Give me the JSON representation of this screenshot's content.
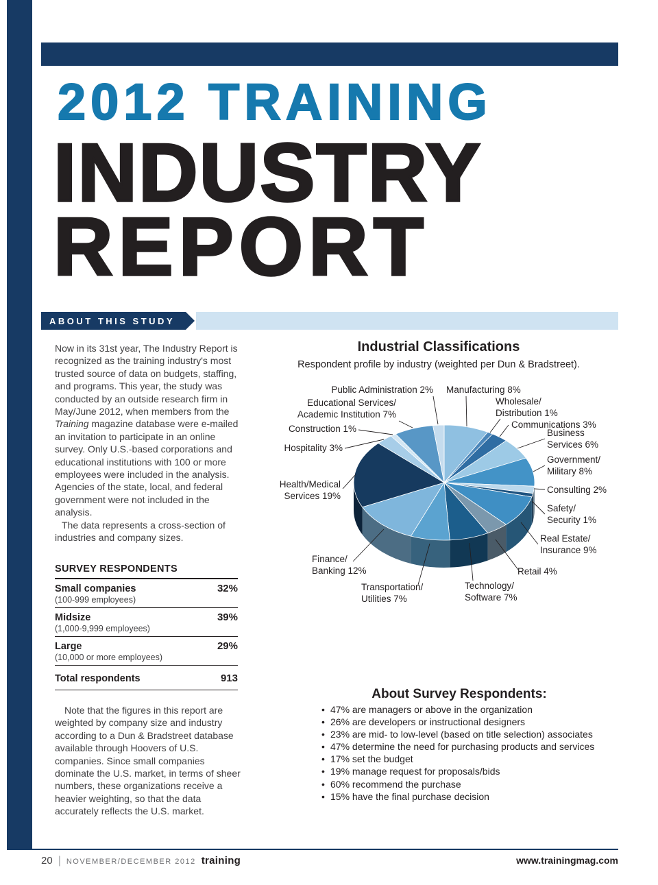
{
  "page": {
    "masthead": {
      "title_line1": "2012 TRAINING",
      "title_line2": "INDUSTRY",
      "title_line3": "REPORT"
    },
    "section_band": {
      "label": "ABOUT THIS STUDY"
    },
    "about_study": {
      "p1_before": "Now in its 31st year, The Industry Report is recognized as the training industry's most trusted source of data on budgets, staffing, and programs. This year, the study was conducted by an outside research firm in May/June 2012, when members from the ",
      "p1_italic": "Training",
      "p1_after": " magazine database were e-mailed an invitation to participate in an online survey. Only U.S.-based corporations and educational institutions with 100 or more employees were included in the analysis. Agencies of the state, local, and federal government were not included in the analysis.",
      "p2": "The data represents a cross-section of industries and company sizes."
    },
    "survey_respondents": {
      "heading": "SURVEY RESPONDENTS",
      "rows": [
        {
          "label": "Small companies",
          "sublabel": "(100-999 employees)",
          "value": "32%"
        },
        {
          "label": "Midsize",
          "sublabel": "(1,000-9,999 employees)",
          "value": "39%"
        },
        {
          "label": "Large",
          "sublabel": "(10,000 or more employees)",
          "value": "29%"
        },
        {
          "label": "Total respondents",
          "sublabel": "",
          "value": "913"
        }
      ]
    },
    "note": "Note that the figures in this report are weighted by company size and industry according to a Dun & Bradstreet database available through Hoovers of U.S. companies. Since small companies dominate the U.S. market, in terms of sheer numbers, these organizations receive a heavier weighting, so that the data accurately reflects the U.S. market.",
    "about_respondents": {
      "heading": "About Survey Respondents:",
      "items": [
        "47% are managers or above in the organization",
        "26% are developers or instructional designers",
        "23% are mid- to low-level (based on title selection) associates",
        "47% determine the need for purchasing products and services",
        "17% set the budget",
        "19% manage request for proposals/bids",
        "60% recommend the purchase",
        "15% have the final purchase decision"
      ]
    },
    "footer": {
      "page_number": "20",
      "issue": "NOVEMBER/DECEMBER 2012",
      "brand": "training",
      "url": "www.trainingmag.com"
    }
  },
  "chart_data": {
    "type": "pie",
    "title": "Industrial Classifications",
    "subtitle": "Respondent profile by industry (weighted per Dun & Bradstreet).",
    "unit": "percent",
    "start_angle_deg": -90,
    "direction": "clockwise",
    "slices": [
      {
        "label": "Manufacturing",
        "value": 8,
        "color": "#8fc0e1",
        "label_lines": [
          "Manufacturing 8%"
        ]
      },
      {
        "label": "Wholesale/Distribution",
        "value": 1,
        "color": "#4a86ba",
        "label_lines": [
          "Wholesale/",
          "Distribution 1%"
        ]
      },
      {
        "label": "Communications",
        "value": 3,
        "color": "#2f6da3",
        "label_lines": [
          "Communications 3%"
        ]
      },
      {
        "label": "Business Services",
        "value": 6,
        "color": "#9dcae6",
        "label_lines": [
          "Business",
          "Services 6%"
        ]
      },
      {
        "label": "Government/Military",
        "value": 8,
        "color": "#4393c7",
        "label_lines": [
          "Government/",
          "Military 8%"
        ]
      },
      {
        "label": "Consulting",
        "value": 2,
        "color": "#bcd9ec",
        "label_lines": [
          "Consulting 2%"
        ]
      },
      {
        "label": "Safety/Security",
        "value": 1,
        "color": "#1d5380",
        "label_lines": [
          "Safety/",
          "Security 1%"
        ]
      },
      {
        "label": "Real Estate/Insurance",
        "value": 9,
        "color": "#3f8fc4",
        "label_lines": [
          "Real Estate/",
          "Insurance 9%"
        ]
      },
      {
        "label": "Retail",
        "value": 4,
        "color": "#7b98ad",
        "label_lines": [
          "Retail 4%"
        ]
      },
      {
        "label": "Technology/Software",
        "value": 7,
        "color": "#1c5e8c",
        "label_lines": [
          "Technology/",
          "Software 7%"
        ]
      },
      {
        "label": "Transportation/Utilities",
        "value": 7,
        "color": "#5ba3d0",
        "label_lines": [
          "Transportation/",
          "Utilities 7%"
        ]
      },
      {
        "label": "Finance/Banking",
        "value": 12,
        "color": "#7fb6dc",
        "label_lines": [
          "Finance/",
          "Banking 12%"
        ]
      },
      {
        "label": "Health/Medical Services",
        "value": 19,
        "color": "#163a5f",
        "label_lines": [
          "Health/Medical",
          "Services 19%"
        ]
      },
      {
        "label": "Hospitality",
        "value": 3,
        "color": "#a7cde8",
        "label_lines": [
          "Hospitality 3%"
        ]
      },
      {
        "label": "Construction",
        "value": 1,
        "color": "#d3e6f3",
        "label_lines": [
          "Construction 1%"
        ]
      },
      {
        "label": "Educational Services/Academic Institution",
        "value": 7,
        "color": "#5897c6",
        "label_lines": [
          "Educational Services/",
          "Academic Institution 7%"
        ]
      },
      {
        "label": "Public Administration",
        "value": 2,
        "color": "#c5dcee",
        "label_lines": [
          "Public Administration 2%"
        ]
      }
    ]
  },
  "colors": {
    "navy": "#173a64",
    "title_blue": "#1679ae",
    "band_light_blue": "#cfe3f2",
    "heading_black": "#231f20",
    "body_text": "#414042"
  }
}
